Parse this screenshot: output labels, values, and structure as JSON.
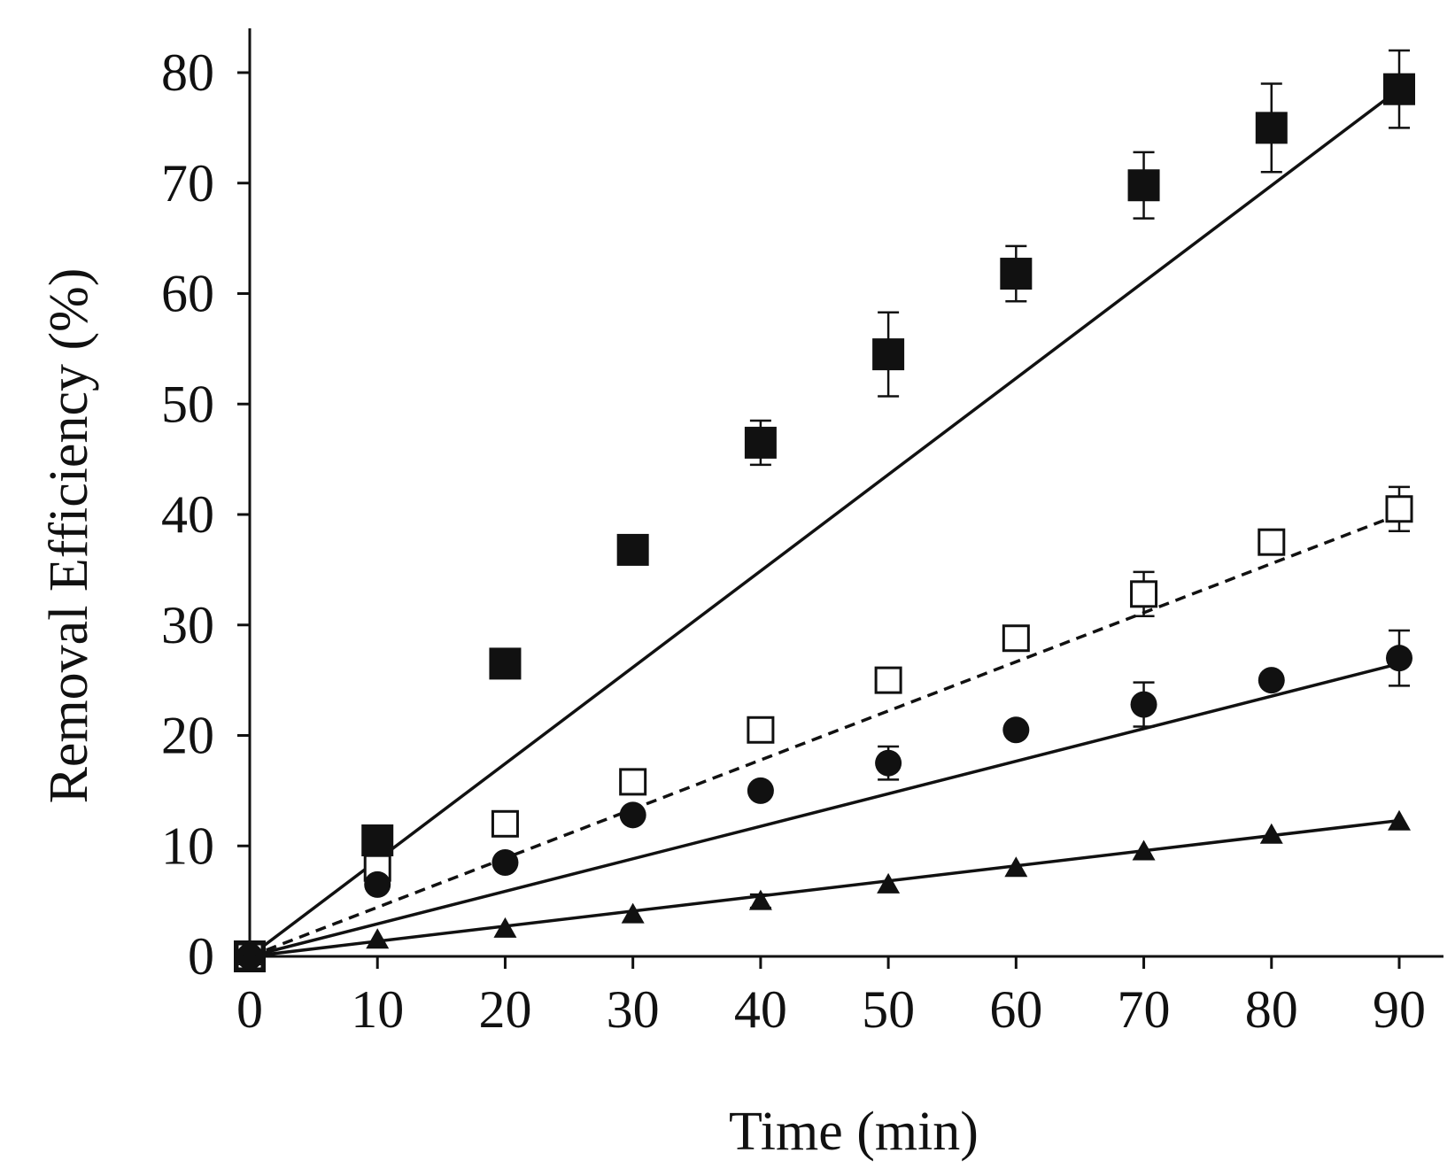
{
  "chart_data": {
    "type": "line",
    "title": "",
    "xlabel": "Time (min)",
    "ylabel": "Removal Efficiency (%)",
    "xlim": [
      0,
      90
    ],
    "ylim": [
      0,
      80
    ],
    "xticks": [
      0,
      10,
      20,
      30,
      40,
      50,
      60,
      70,
      80,
      90
    ],
    "yticks": [
      0,
      10,
      20,
      30,
      40,
      50,
      60,
      70,
      80
    ],
    "x": [
      0,
      10,
      20,
      30,
      40,
      50,
      60,
      70,
      80,
      90
    ],
    "grid": false,
    "legend": "none",
    "series": [
      {
        "name": "filled-square",
        "marker": "square-filled",
        "line": "solid",
        "values": [
          0,
          10.5,
          26.5,
          36.8,
          46.5,
          54.5,
          61.8,
          69.8,
          75.0,
          78.5
        ],
        "errors": [
          0,
          0,
          1.0,
          0.8,
          2.0,
          3.8,
          2.5,
          3.0,
          4.0,
          3.5
        ],
        "fit": [
          0,
          78.5
        ]
      },
      {
        "name": "open-square",
        "marker": "square-open",
        "line": "dashed",
        "values": [
          0,
          8.0,
          12.0,
          15.8,
          20.5,
          25.0,
          28.8,
          32.8,
          37.5,
          40.5
        ],
        "errors": [
          0,
          0,
          0,
          1.0,
          0.8,
          1.0,
          0.6,
          2.0,
          0,
          2.0
        ],
        "fit": [
          0,
          40.0
        ]
      },
      {
        "name": "filled-circle",
        "marker": "circle-filled",
        "line": "solid",
        "values": [
          0,
          6.5,
          8.5,
          12.8,
          15.0,
          17.5,
          20.5,
          22.8,
          25.0,
          27.0
        ],
        "errors": [
          0,
          0,
          0,
          0,
          0,
          1.5,
          0.6,
          2.0,
          0.6,
          2.5
        ],
        "fit": [
          0,
          26.5
        ]
      },
      {
        "name": "filled-triangle",
        "marker": "triangle-filled",
        "line": "solid",
        "values": [
          0,
          1.5,
          2.5,
          3.8,
          5.0,
          6.5,
          8.0,
          9.5,
          11.0,
          12.2
        ],
        "errors": [
          0,
          0,
          0,
          0,
          0.6,
          0,
          0,
          0,
          0,
          0
        ],
        "fit": [
          0,
          12.3
        ]
      }
    ]
  }
}
